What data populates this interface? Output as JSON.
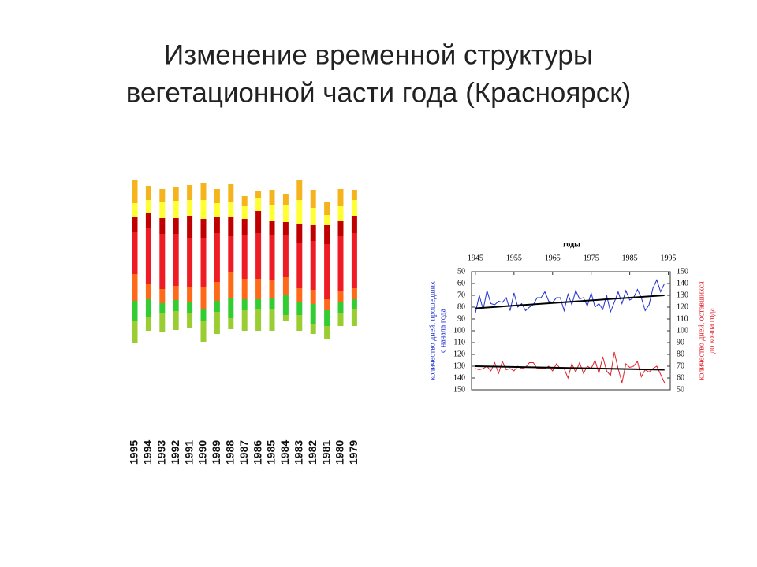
{
  "title": [
    "Изменение временной структуры",
    "вегетационной части года (Красноярск)"
  ],
  "chart_data": [
    {
      "type": "stacked_bar",
      "categories": [
        "1995",
        "1994",
        "1993",
        "1992",
        "1991",
        "1990",
        "1989",
        "1988",
        "1987",
        "1986",
        "1985",
        "1984",
        "1983",
        "1982",
        "1981",
        "1980",
        "1979"
      ],
      "start": [
        4,
        20,
        19,
        21,
        24,
        6,
        16,
        22,
        20,
        20,
        20,
        32,
        20,
        16,
        10,
        26,
        26
      ],
      "ylim": [
        0,
        220
      ],
      "series": [
        {
          "color": "#9acd32",
          "values": [
            28,
            18,
            24,
            24,
            18,
            26,
            28,
            14,
            26,
            28,
            28,
            8,
            20,
            12,
            16,
            16,
            22
          ]
        },
        {
          "color": "#33cc33",
          "values": [
            26,
            22,
            12,
            14,
            14,
            16,
            14,
            26,
            14,
            12,
            14,
            26,
            16,
            26,
            20,
            14,
            12
          ]
        },
        {
          "color": "#ff6a1a",
          "values": [
            34,
            20,
            18,
            18,
            20,
            28,
            24,
            32,
            26,
            26,
            22,
            22,
            18,
            18,
            14,
            14,
            14
          ]
        },
        {
          "color": "#ee1c24",
          "values": [
            54,
            70,
            70,
            66,
            62,
            62,
            62,
            46,
            56,
            58,
            58,
            54,
            58,
            62,
            70,
            70,
            70
          ]
        },
        {
          "color": "#c00000",
          "values": [
            18,
            20,
            20,
            20,
            28,
            24,
            20,
            24,
            20,
            28,
            18,
            16,
            24,
            20,
            24,
            20,
            22
          ]
        },
        {
          "color": "#ffff33",
          "values": [
            18,
            16,
            20,
            22,
            20,
            24,
            18,
            20,
            16,
            16,
            20,
            22,
            30,
            22,
            13,
            18,
            20
          ]
        },
        {
          "color": "#f5b41e",
          "values": [
            30,
            18,
            17,
            17,
            19,
            21,
            18,
            22,
            13,
            9,
            19,
            14,
            26,
            23,
            16,
            22,
            13
          ]
        }
      ]
    },
    {
      "type": "line",
      "xlabel": "годы",
      "ylabel": [
        "количество дней, прошедших",
        "с начала года"
      ],
      "y2label": [
        "количество дней, оставшихся",
        "до конца года"
      ],
      "xlim": [
        1944,
        1995.5
      ],
      "xticks": [
        1945,
        1955,
        1965,
        1975,
        1985,
        1995
      ],
      "ylim": [
        150,
        50
      ],
      "yticks": [
        50,
        60,
        70,
        80,
        90,
        100,
        110,
        120,
        130,
        140,
        150
      ],
      "y2lim": [
        50,
        150
      ],
      "y2ticks": [
        150,
        140,
        130,
        120,
        110,
        100,
        90,
        80,
        70,
        60,
        50
      ],
      "x": [
        1945,
        1946,
        1947,
        1948,
        1949,
        1950,
        1951,
        1952,
        1953,
        1954,
        1955,
        1956,
        1957,
        1958,
        1959,
        1960,
        1961,
        1962,
        1963,
        1964,
        1965,
        1966,
        1967,
        1968,
        1969,
        1970,
        1971,
        1972,
        1973,
        1974,
        1975,
        1976,
        1977,
        1978,
        1979,
        1980,
        1981,
        1982,
        1983,
        1984,
        1985,
        1986,
        1987,
        1988,
        1989,
        1990,
        1991,
        1992,
        1993,
        1994
      ],
      "series": [
        {
          "color": "#1f2fd0",
          "axis": "y",
          "values": [
            85,
            70,
            82,
            66,
            77,
            78,
            75,
            76,
            72,
            83,
            68,
            80,
            77,
            83,
            80,
            78,
            72,
            72,
            67,
            75,
            76,
            72,
            72,
            83,
            69,
            78,
            66,
            73,
            72,
            79,
            68,
            80,
            77,
            82,
            70,
            84,
            76,
            67,
            77,
            66,
            74,
            72,
            65,
            72,
            83,
            78,
            64,
            57,
            67,
            60
          ]
        },
        {
          "color": "#e0202a",
          "axis": "y2",
          "values": [
            68,
            67,
            68,
            70,
            66,
            73,
            64,
            74,
            67,
            68,
            66,
            70,
            68,
            69,
            73,
            73,
            68,
            68,
            68,
            70,
            66,
            72,
            68,
            68,
            60,
            72,
            65,
            73,
            64,
            70,
            68,
            75,
            64,
            78,
            66,
            62,
            82,
            68,
            56,
            72,
            69,
            70,
            74,
            61,
            67,
            65,
            68,
            70,
            63,
            56
          ]
        },
        {
          "color": "#000000",
          "axis": "y",
          "x": [
            1945,
            1994
          ],
          "values": [
            81,
            70
          ]
        },
        {
          "color": "#000000",
          "axis": "y2",
          "x": [
            1945,
            1994
          ],
          "values": [
            70,
            67
          ]
        }
      ]
    }
  ]
}
